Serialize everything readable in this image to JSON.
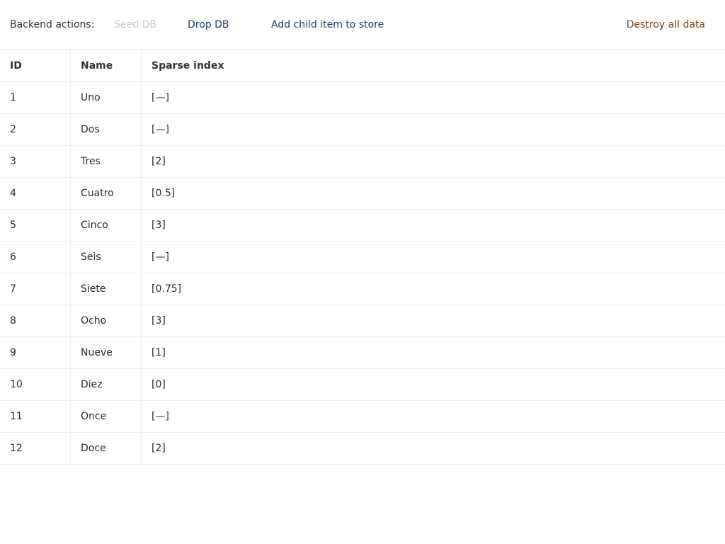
{
  "toolbar": {
    "label": "Backend actions:",
    "seed": "Seed DB",
    "drop": "Drop DB",
    "add_child": "Add child item to store",
    "destroy": "Destroy all data"
  },
  "table": {
    "headers": [
      "ID",
      "Name",
      "Sparse index"
    ],
    "rows": [
      [
        "1",
        "Uno",
        "[—]"
      ],
      [
        "2",
        "Dos",
        "[—]"
      ],
      [
        "3",
        "Tres",
        "[2]"
      ],
      [
        "4",
        "Cuatro",
        "[0.5]"
      ],
      [
        "5",
        "Cinco",
        "[3]"
      ],
      [
        "6",
        "Seis",
        "[—]"
      ],
      [
        "7",
        "Siete",
        "[0.75]"
      ],
      [
        "8",
        "Ocho",
        "[3]"
      ],
      [
        "9",
        "Nueve",
        "[1]"
      ],
      [
        "10",
        "Diez",
        "[0]"
      ],
      [
        "11",
        "Once",
        "[—]"
      ],
      [
        "12",
        "Doce",
        "[2]"
      ]
    ]
  },
  "colors": {
    "disabled": "#c8c8c8",
    "link": "#1e3a5f",
    "danger": "#6b4a1a"
  }
}
